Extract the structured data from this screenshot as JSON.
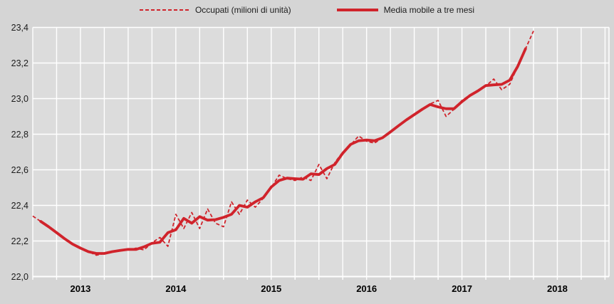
{
  "chart_data": {
    "type": "line",
    "title": "",
    "legend": [
      {
        "label": "Occupati (milioni di unità)",
        "style": "dashed"
      },
      {
        "label": "Media mobile a tre mesi",
        "style": "solid"
      }
    ],
    "x_axis": {
      "tick_labels": [
        "2013",
        "2014",
        "2015",
        "2016",
        "2017",
        "2018"
      ],
      "start_month": "2012-07",
      "end_month": "2017-10",
      "frequency": "monthly",
      "grid": "quarterly"
    },
    "y_axis": {
      "tick_labels": [
        "22,0",
        "22,2",
        "22,4",
        "22,6",
        "22,8",
        "23,0",
        "23,2",
        "23,4"
      ],
      "min": 22.0,
      "max": 23.4,
      "step": 0.2
    },
    "series": [
      {
        "name": "Occupati (milioni di unità)",
        "style": "dashed",
        "start_month": "2012-07",
        "values": [
          22.34,
          22.31,
          22.28,
          22.25,
          22.21,
          22.18,
          22.16,
          22.14,
          22.12,
          22.13,
          22.14,
          22.15,
          22.15,
          22.16,
          22.15,
          22.19,
          22.22,
          22.17,
          22.35,
          22.27,
          22.36,
          22.27,
          22.38,
          22.3,
          22.28,
          22.42,
          22.35,
          22.43,
          22.39,
          22.44,
          22.5,
          22.57,
          22.55,
          22.54,
          22.56,
          22.54,
          22.63,
          22.55,
          22.64,
          22.7,
          22.74,
          22.79,
          22.76,
          22.75,
          22.78,
          22.81,
          22.85,
          22.88,
          22.91,
          22.94,
          22.97,
          22.99,
          22.9,
          22.94,
          22.99,
          23.02,
          23.04,
          23.07,
          23.11,
          23.05,
          23.08,
          23.18,
          23.28,
          23.38
        ]
      },
      {
        "name": "Media mobile a tre mesi",
        "style": "solid",
        "start_month": "2012-08",
        "values": [
          22.31,
          22.28,
          22.247,
          22.213,
          22.183,
          22.16,
          22.14,
          22.13,
          22.13,
          22.14,
          22.147,
          22.153,
          22.153,
          22.167,
          22.187,
          22.193,
          22.247,
          22.263,
          22.327,
          22.3,
          22.337,
          22.317,
          22.32,
          22.333,
          22.35,
          22.4,
          22.39,
          22.42,
          22.443,
          22.503,
          22.54,
          22.553,
          22.55,
          22.547,
          22.577,
          22.573,
          22.607,
          22.63,
          22.693,
          22.743,
          22.763,
          22.767,
          22.763,
          22.78,
          22.813,
          22.847,
          22.88,
          22.91,
          22.94,
          22.967,
          22.953,
          22.943,
          22.943,
          22.983,
          23.017,
          23.043,
          23.073,
          23.077,
          23.08,
          23.103,
          23.18,
          23.28
        ]
      }
    ],
    "colors": {
      "line": "#d0232b",
      "page_bg": "#d5d5d5",
      "plot_bg": "#dcdcdc",
      "grid": "#ffffff",
      "axis_text": "#1c1c1c"
    }
  }
}
